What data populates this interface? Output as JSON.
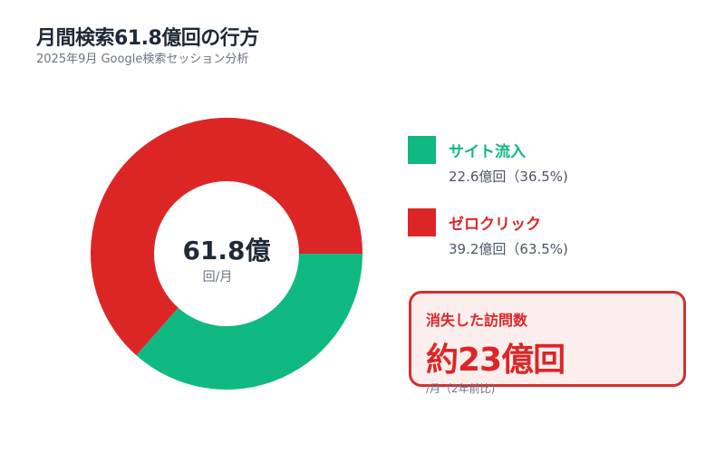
{
  "header": {
    "title": "月間検索61.8億回の行方",
    "subtitle": "2025年9月 Google検索セッション分析"
  },
  "donut_center": {
    "value": "61.8億",
    "unit": "回/月"
  },
  "legend": [
    {
      "label": "サイト流入",
      "value": "22.6億回（36.5%)",
      "color": "#10b981"
    },
    {
      "label": "ゼロクリック",
      "value": "39.2億回（63.5%)",
      "color": "#dc2626"
    }
  ],
  "callout": {
    "label": "消失した訪問数",
    "value": "約23億回",
    "note": "/月（2年前比)",
    "border_color": "#d32f2f",
    "background": "#fdeeee"
  },
  "chart_data": {
    "type": "pie",
    "subtype": "donut",
    "title": "月間検索61.8億回の行方",
    "subtitle": "2025年9月 Google検索セッション分析",
    "categories": [
      "サイト流入",
      "ゼロクリック"
    ],
    "values": [
      22.6,
      39.2
    ],
    "percentages": [
      36.5,
      63.5
    ],
    "unit": "億回",
    "total": 61.8,
    "colors": [
      "#10b981",
      "#dc2626"
    ],
    "center_label": "61.8億 回/月",
    "legend_position": "right",
    "annotation": "消失した訪問数 約23億回 /月（2年前比)"
  }
}
